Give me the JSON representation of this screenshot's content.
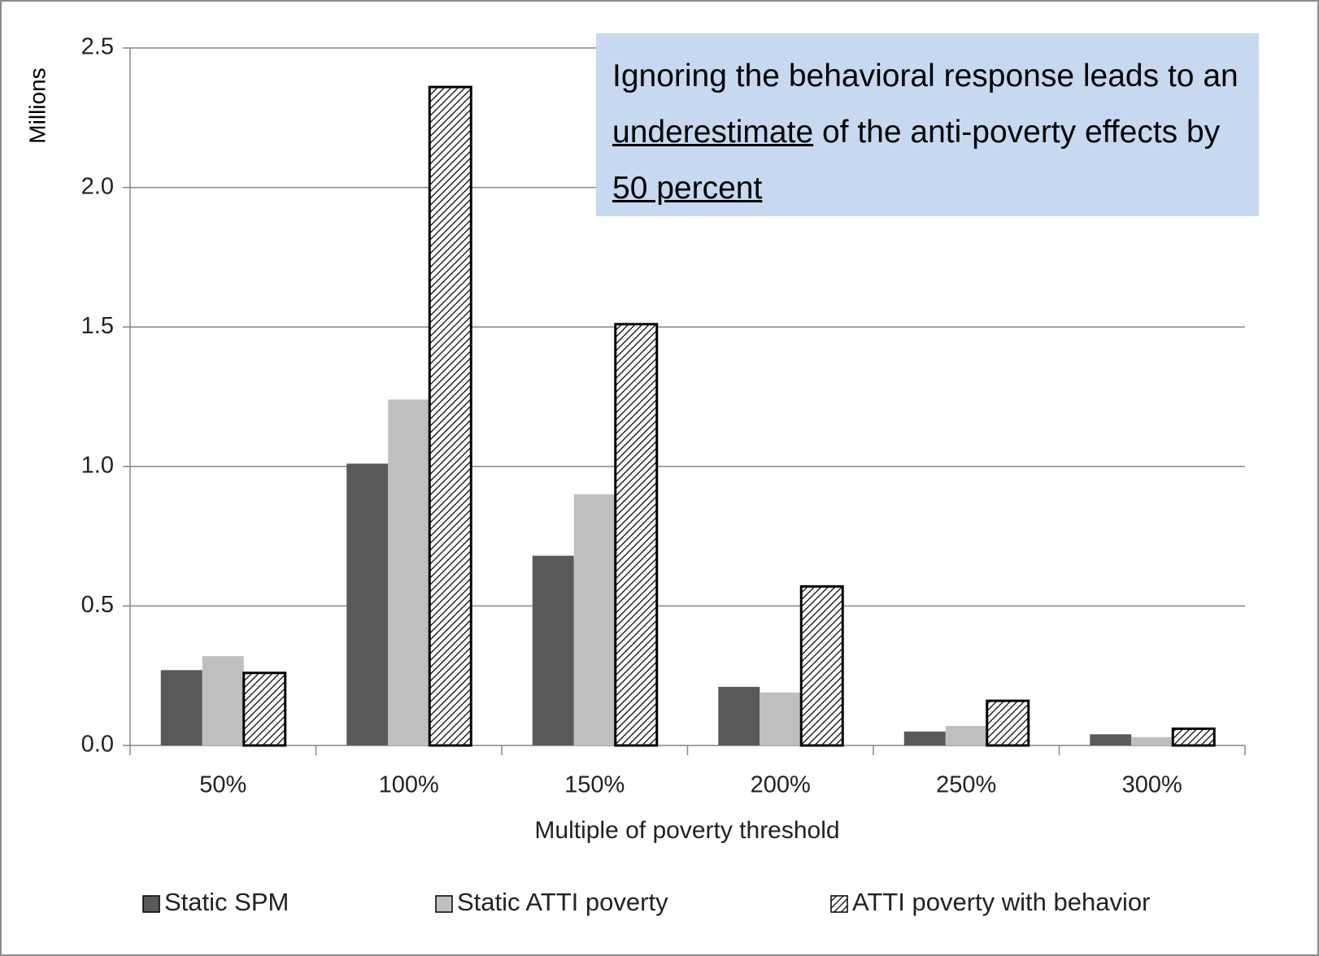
{
  "chart_data": {
    "type": "bar",
    "y_label": "Millions",
    "x_label": "Multiple of poverty threshold",
    "annotation": [
      {
        "text": "Ignoring the behavioral response leads to an ",
        "underline": false
      },
      {
        "text": "underestimate",
        "underline": true
      },
      {
        "text": " of the anti-poverty effects by ",
        "underline": false
      },
      {
        "text": "50 percent",
        "underline": true
      }
    ],
    "categories": [
      "50%",
      "100%",
      "150%",
      "200%",
      "250%",
      "300%"
    ],
    "series": [
      {
        "name": "Static SPM",
        "color": "#595959",
        "values": [
          0.27,
          1.01,
          0.68,
          0.21,
          0.05,
          0.04
        ]
      },
      {
        "name": "Static ATTI poverty",
        "color": "#bfbfbf",
        "values": [
          0.32,
          1.24,
          0.9,
          0.19,
          0.07,
          0.03
        ]
      },
      {
        "name": "ATTI poverty with behavior",
        "color": "#000000",
        "pattern": "diagonal-hatch",
        "values": [
          0.26,
          2.36,
          1.51,
          0.57,
          0.16,
          0.06
        ]
      }
    ],
    "ylim": [
      0,
      2.5
    ],
    "yticks": [
      {
        "value": 0,
        "label": "0.0"
      },
      0.5,
      {
        "value": 1,
        "label": "1.0"
      },
      1.5,
      {
        "value": 2,
        "label": "2.0"
      },
      2.5
    ],
    "grid": true,
    "legend": "bottom"
  }
}
